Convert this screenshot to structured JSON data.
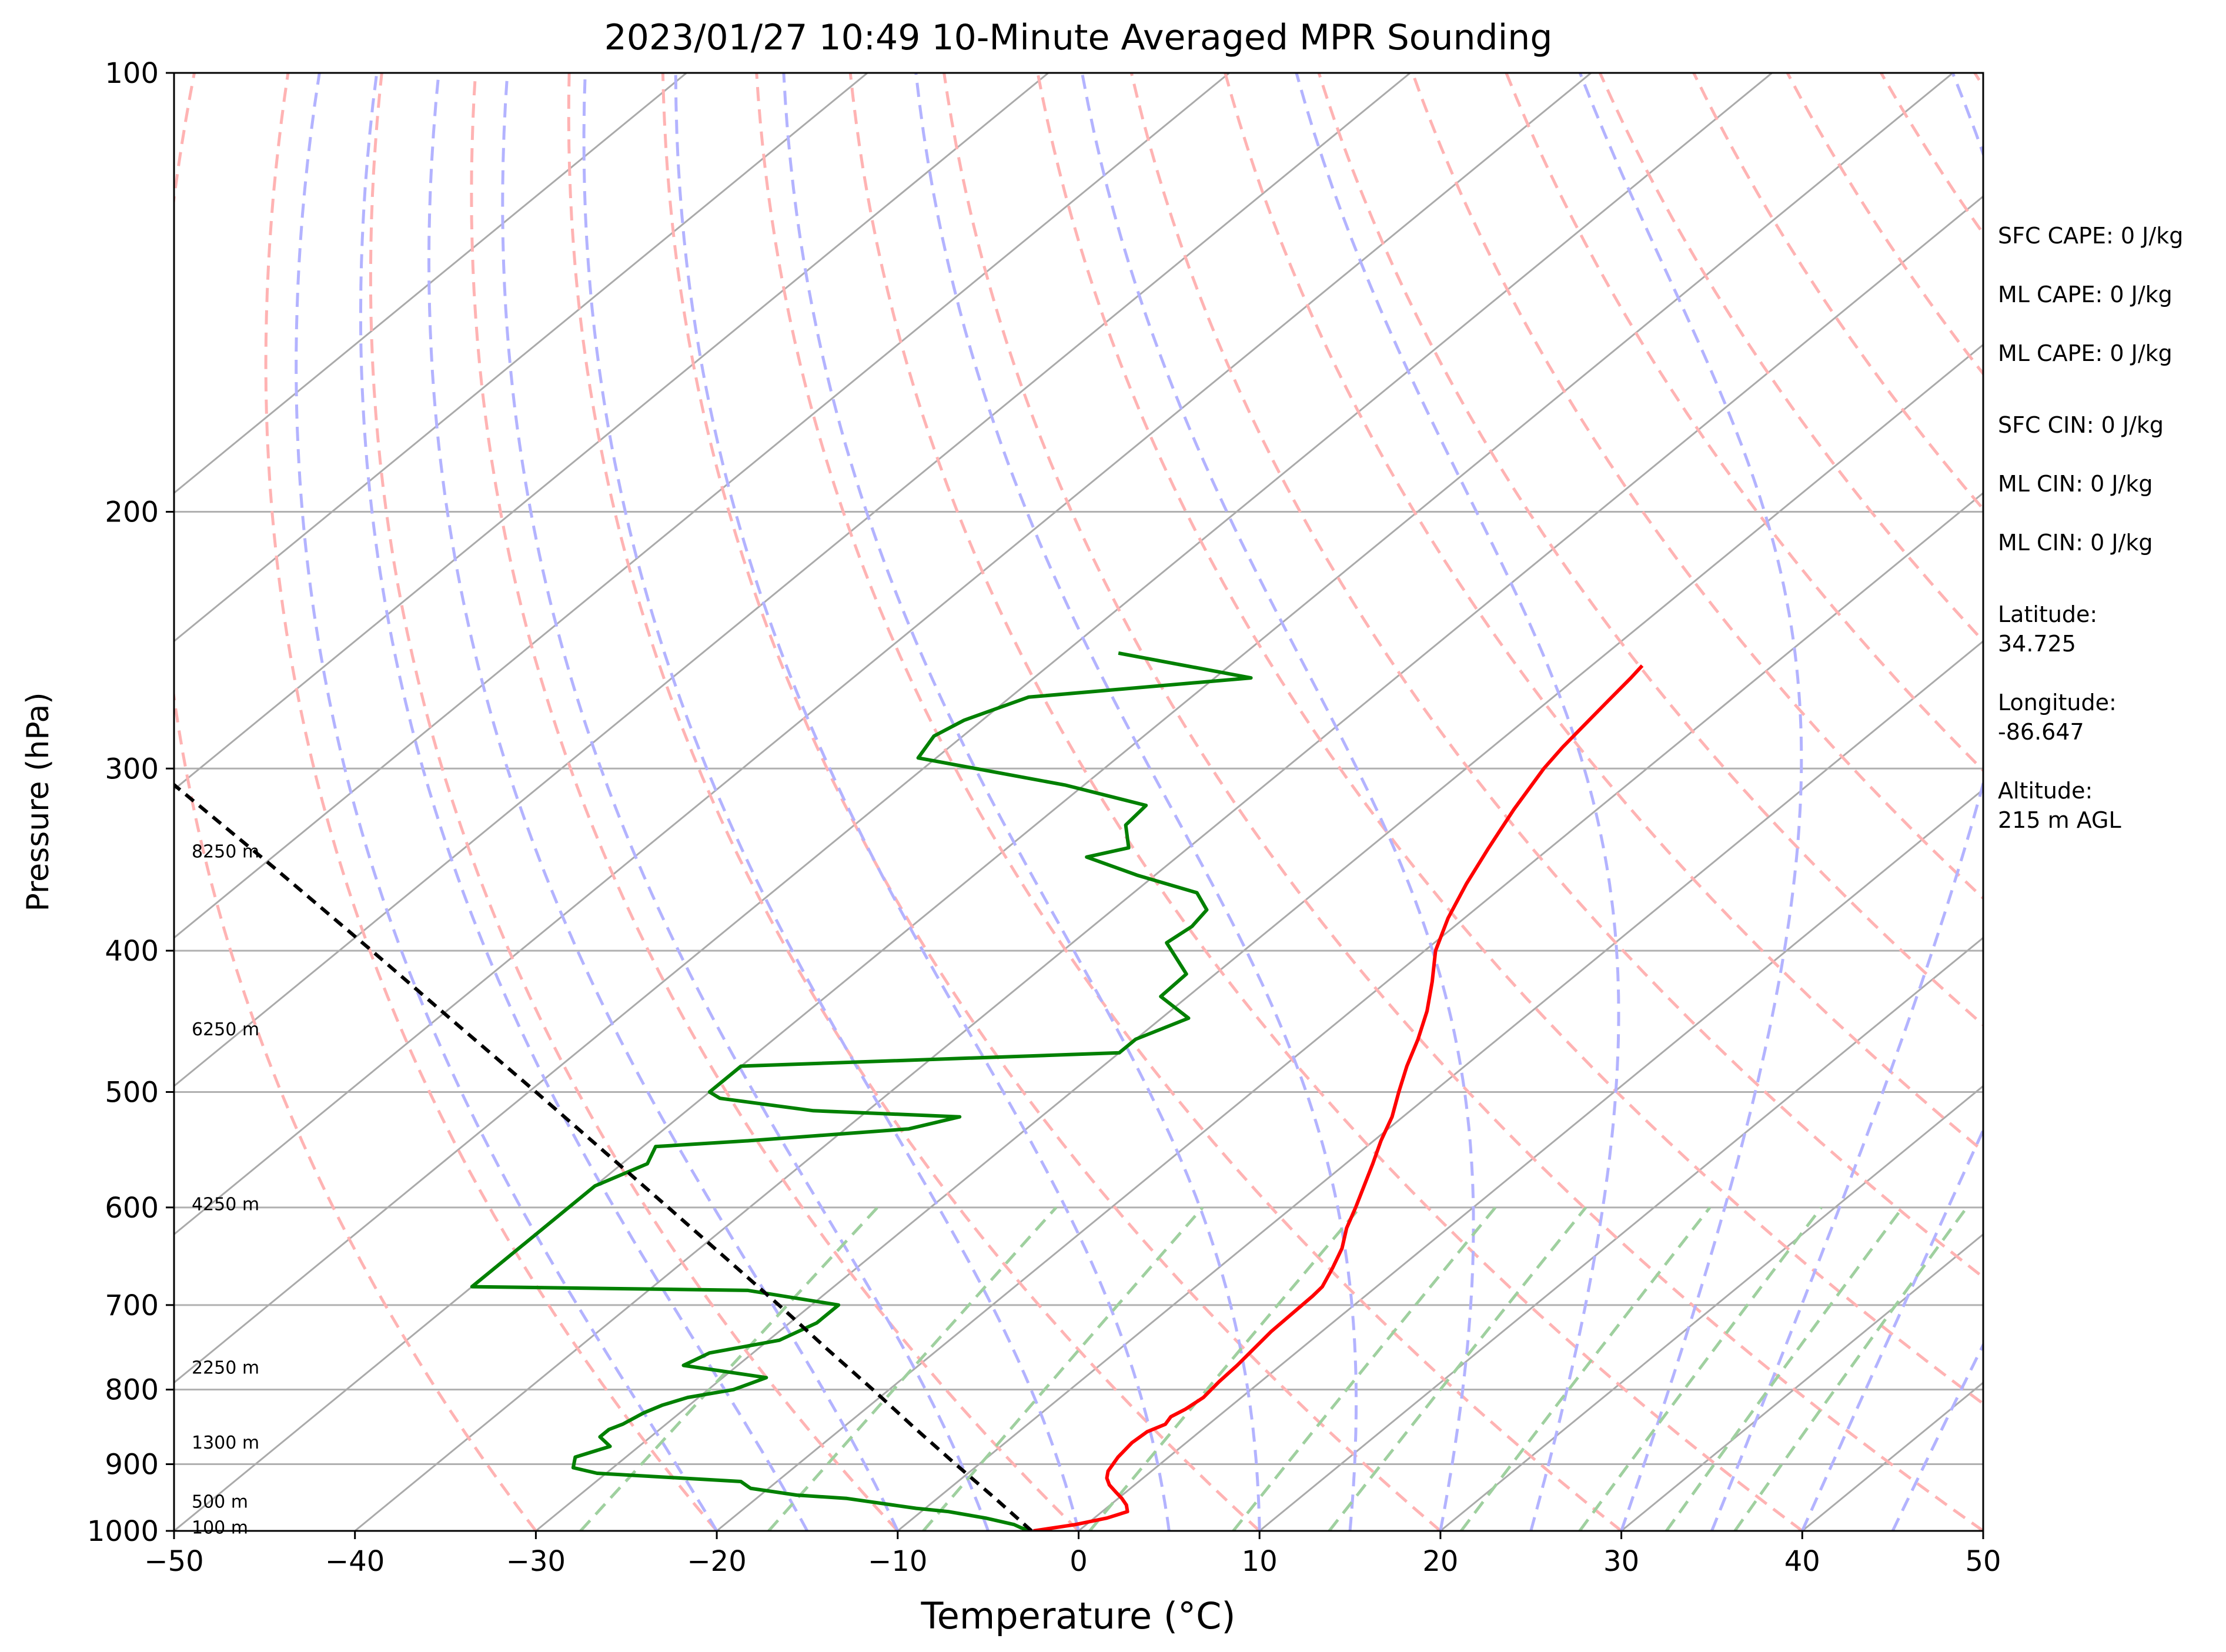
{
  "chart_data": {
    "type": "line",
    "subtype": "skew-t log-p",
    "title": "2023/01/27 10:49 10-Minute Averaged MPR Sounding",
    "xlabel": "Temperature (°C)",
    "ylabel": "Pressure (hPa)",
    "xlim": [
      -50,
      50
    ],
    "ylim": [
      1000,
      100
    ],
    "y_scale": "log",
    "x_ticks": [
      "−50",
      "−40",
      "−30",
      "−20",
      "−10",
      "0",
      "10",
      "20",
      "30",
      "40",
      "50"
    ],
    "y_ticks": [
      "100",
      "200",
      "300",
      "400",
      "500",
      "600",
      "700",
      "800",
      "900",
      "1000"
    ],
    "grid": true,
    "series": [
      {
        "role": "temperature",
        "color": "#ff0000",
        "points": [
          [
            1000,
            -2.5
          ],
          [
            990,
            -0.6
          ],
          [
            980,
            0.7
          ],
          [
            970,
            1.4
          ],
          [
            960,
            0.9
          ],
          [
            950,
            0.2
          ],
          [
            940,
            -0.6
          ],
          [
            930,
            -1.4
          ],
          [
            920,
            -2.0
          ],
          [
            910,
            -2.4
          ],
          [
            890,
            -2.8
          ],
          [
            870,
            -3.0
          ],
          [
            855,
            -2.9
          ],
          [
            845,
            -2.4
          ],
          [
            835,
            -2.6
          ],
          [
            825,
            -2.3
          ],
          [
            810,
            -2.1
          ],
          [
            790,
            -2.3
          ],
          [
            770,
            -2.4
          ],
          [
            730,
            -2.8
          ],
          [
            690,
            -2.9
          ],
          [
            680,
            -3.0
          ],
          [
            660,
            -3.7
          ],
          [
            640,
            -4.5
          ],
          [
            620,
            -5.6
          ],
          [
            600,
            -6.5
          ],
          [
            560,
            -8.5
          ],
          [
            540,
            -9.6
          ],
          [
            520,
            -10.6
          ],
          [
            500,
            -11.9
          ],
          [
            480,
            -13.2
          ],
          [
            460,
            -14.4
          ],
          [
            440,
            -15.8
          ],
          [
            420,
            -17.5
          ],
          [
            400,
            -19.4
          ],
          [
            380,
            -20.9
          ],
          [
            360,
            -22.2
          ],
          [
            340,
            -23.4
          ],
          [
            320,
            -24.6
          ],
          [
            300,
            -25.7
          ],
          [
            290,
            -26.1
          ],
          [
            280,
            -26.4
          ],
          [
            270,
            -26.7
          ],
          [
            260,
            -27.0
          ],
          [
            255,
            -27.2
          ]
        ]
      },
      {
        "role": "dewpoint",
        "color": "#008000",
        "points": [
          [
            1000,
            -2.6
          ],
          [
            995,
            -3.4
          ],
          [
            990,
            -4.0
          ],
          [
            980,
            -6.0
          ],
          [
            970,
            -8.5
          ],
          [
            965,
            -10.5
          ],
          [
            960,
            -12.0
          ],
          [
            950,
            -15.0
          ],
          [
            945,
            -18.0
          ],
          [
            935,
            -21.0
          ],
          [
            925,
            -22.0
          ],
          [
            913,
            -30.5
          ],
          [
            905,
            -32.2
          ],
          [
            890,
            -32.8
          ],
          [
            875,
            -31.6
          ],
          [
            862,
            -32.8
          ],
          [
            852,
            -32.8
          ],
          [
            845,
            -32.4
          ],
          [
            830,
            -32.0
          ],
          [
            820,
            -31.5
          ],
          [
            810,
            -30.6
          ],
          [
            800,
            -28.6
          ],
          [
            785,
            -27.6
          ],
          [
            770,
            -33.0
          ],
          [
            755,
            -32.4
          ],
          [
            740,
            -29.4
          ],
          [
            720,
            -28.5
          ],
          [
            700,
            -28.5
          ],
          [
            684,
            -34.5
          ],
          [
            680,
            -50.0
          ],
          [
            580,
            -50.0
          ],
          [
            560,
            -48.6
          ],
          [
            545,
            -49.3
          ],
          [
            540,
            -44.5
          ],
          [
            530,
            -36.5
          ],
          [
            520,
            -34.5
          ],
          [
            515,
            -43.0
          ],
          [
            505,
            -49.0
          ],
          [
            500,
            -50.0
          ],
          [
            480,
            -50.0
          ],
          [
            470,
            -30.0
          ],
          [
            460,
            -30.0
          ],
          [
            445,
            -28.5
          ],
          [
            430,
            -31.5
          ],
          [
            415,
            -31.6
          ],
          [
            395,
            -34.8
          ],
          [
            385,
            -34.5
          ],
          [
            375,
            -34.8
          ],
          [
            365,
            -36.5
          ],
          [
            355,
            -41.0
          ],
          [
            345,
            -45.0
          ],
          [
            340,
            -43.3
          ],
          [
            328,
            -45.0
          ],
          [
            318,
            -45.2
          ],
          [
            308,
            -51.0
          ],
          [
            295,
            -61.0
          ],
          [
            285,
            -61.6
          ],
          [
            278,
            -61.0
          ],
          [
            268,
            -59.0
          ],
          [
            260,
            -48.0
          ],
          [
            250,
            -57.0
          ]
        ]
      },
      {
        "role": "parcel",
        "color": "#000000",
        "style": "dashed",
        "points": [
          [
            1000,
            -2.6
          ],
          [
            950,
            -6.8
          ],
          [
            900,
            -11.3
          ],
          [
            850,
            -16.0
          ],
          [
            800,
            -20.9
          ],
          [
            750,
            -26.2
          ],
          [
            700,
            -31.8
          ],
          [
            650,
            -37.9
          ],
          [
            600,
            -44.5
          ],
          [
            550,
            -51.7
          ],
          [
            500,
            -59.6
          ],
          [
            450,
            -68.4
          ],
          [
            400,
            -78.2
          ],
          [
            350,
            -89.4
          ],
          [
            300,
            -102.5
          ]
        ]
      }
    ],
    "reference_lines": {
      "isotherms_gray": [
        -120,
        -110,
        -100,
        -90,
        -80,
        -70,
        -60,
        -50,
        -40,
        -30,
        -20,
        -10,
        0,
        10,
        20,
        30,
        40,
        50
      ],
      "dry_adiabats_red_theta_c": [
        -30,
        -20,
        -10,
        0,
        10,
        20,
        30,
        40,
        50,
        60,
        70,
        80,
        90,
        100,
        110,
        120,
        130,
        140,
        150,
        160,
        170
      ],
      "moist_adiabats_blue_start_c": [
        -20,
        -15,
        -10,
        -5,
        0,
        5,
        10,
        15,
        20,
        25,
        30,
        35,
        40,
        45
      ],
      "mixing_ratio_green_gkg": [
        0.4,
        1,
        2,
        4,
        7,
        10,
        16,
        24,
        32,
        40
      ]
    },
    "height_labels": [
      {
        "text": "8250 m",
        "p": 342
      },
      {
        "text": "6250 m",
        "p": 453
      },
      {
        "text": "4250 m",
        "p": 597
      },
      {
        "text": "2250 m",
        "p": 773
      },
      {
        "text": "1300 m",
        "p": 870
      },
      {
        "text": "500 m",
        "p": 955
      },
      {
        "text": "100 m",
        "p": 995
      }
    ],
    "side_text": [
      "SFC CAPE: 0 J/kg",
      "ML CAPE: 0 J/kg",
      "ML CAPE: 0 J/kg",
      "SFC CIN: 0 J/kg",
      "ML CIN: 0 J/kg",
      "ML CIN: 0 J/kg",
      "Latitude:",
      "34.725",
      "Longitude:",
      "-86.647",
      "Altitude:",
      "215 m AGL"
    ],
    "colors": {
      "temperature": "#ff0000",
      "dewpoint": "#008000",
      "parcel": "#000000",
      "isotherm": "#aaaaaa",
      "dry_adiabat": "#ffb3b3",
      "moist_adiabat": "#b3b3ff",
      "mixing_ratio": "#9fd09f",
      "grid": "#b0b0b0"
    }
  }
}
